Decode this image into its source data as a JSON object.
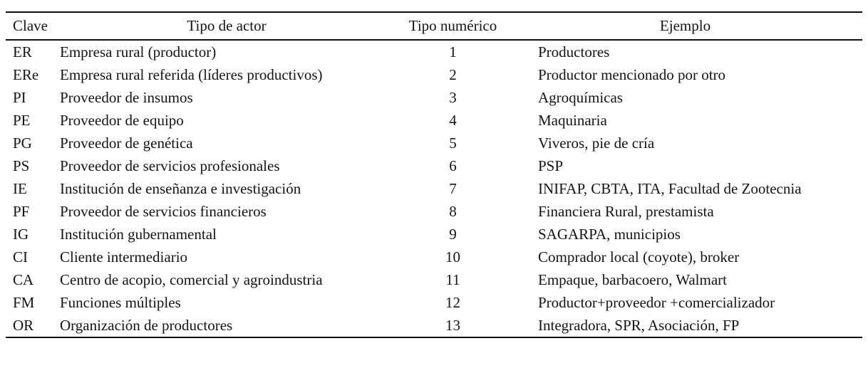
{
  "table": {
    "columns": [
      {
        "label": "Clave"
      },
      {
        "label": "Tipo de actor"
      },
      {
        "label": "Tipo numérico"
      },
      {
        "label": "Ejemplo"
      }
    ],
    "rows": [
      {
        "clave": "ER",
        "tipo_actor": "Empresa rural (productor)",
        "tipo_numerico": "1",
        "ejemplo": "Productores"
      },
      {
        "clave": "ERe",
        "tipo_actor": "Empresa rural referida (líderes productivos)",
        "tipo_numerico": "2",
        "ejemplo": "Productor mencionado por otro"
      },
      {
        "clave": "PI",
        "tipo_actor": "Proveedor de insumos",
        "tipo_numerico": "3",
        "ejemplo": "Agroquímicas"
      },
      {
        "clave": "PE",
        "tipo_actor": "Proveedor de equipo",
        "tipo_numerico": "4",
        "ejemplo": "Maquinaria"
      },
      {
        "clave": "PG",
        "tipo_actor": "Proveedor de genética",
        "tipo_numerico": "5",
        "ejemplo": "Viveros, pie de cría"
      },
      {
        "clave": "PS",
        "tipo_actor": "Proveedor de servicios profesionales",
        "tipo_numerico": "6",
        "ejemplo": "PSP"
      },
      {
        "clave": "IE",
        "tipo_actor": "Institución de enseñanza e investigación",
        "tipo_numerico": "7",
        "ejemplo": "INIFAP, CBTA, ITA, Facultad de Zootecnia"
      },
      {
        "clave": "PF",
        "tipo_actor": "Proveedor de servicios financieros",
        "tipo_numerico": "8",
        "ejemplo": "Financiera Rural, prestamista"
      },
      {
        "clave": "IG",
        "tipo_actor": "Institución gubernamental",
        "tipo_numerico": "9",
        "ejemplo": "SAGARPA, municipios"
      },
      {
        "clave": "CI",
        "tipo_actor": "Cliente intermediario",
        "tipo_numerico": "10",
        "ejemplo": "Comprador local (coyote), broker"
      },
      {
        "clave": "CA",
        "tipo_actor": "Centro de acopio, comercial y agroindustria",
        "tipo_numerico": "11",
        "ejemplo": "Empaque, barbacoero, Walmart"
      },
      {
        "clave": "FM",
        "tipo_actor": "Funciones múltiples",
        "tipo_numerico": "12",
        "ejemplo": "Productor+proveedor +comercializador"
      },
      {
        "clave": "OR",
        "tipo_actor": "Organización de productores",
        "tipo_numerico": "13",
        "ejemplo": "Integradora, SPR, Asociación, FP"
      }
    ]
  }
}
